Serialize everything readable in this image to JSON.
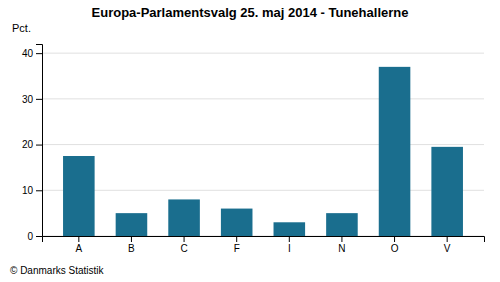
{
  "chart_data": {
    "type": "bar",
    "title": "Europa-Parlamentsvalg 25. maj 2014 - Tunehallerne",
    "ylabel": "Pct.",
    "categories": [
      "A",
      "B",
      "C",
      "F",
      "I",
      "N",
      "O",
      "V"
    ],
    "values": [
      17.5,
      5.0,
      8.0,
      6.0,
      3.0,
      5.0,
      37.0,
      19.5
    ],
    "color": "#1a6e8e",
    "ylim": [
      0,
      42
    ],
    "yticks": [
      0,
      10,
      20,
      30,
      40
    ],
    "grid": true,
    "footer": "© Danmarks Statistik"
  }
}
